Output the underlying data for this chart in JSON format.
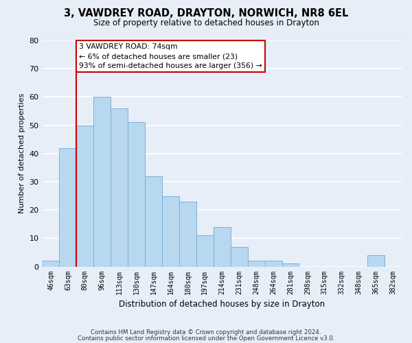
{
  "title": "3, VAWDREY ROAD, DRAYTON, NORWICH, NR8 6EL",
  "subtitle": "Size of property relative to detached houses in Drayton",
  "xlabel": "Distribution of detached houses by size in Drayton",
  "ylabel": "Number of detached properties",
  "bar_color": "#b8d8f0",
  "bar_edge_color": "#7ab0d8",
  "categories": [
    "46sqm",
    "63sqm",
    "80sqm",
    "96sqm",
    "113sqm",
    "130sqm",
    "147sqm",
    "164sqm",
    "180sqm",
    "197sqm",
    "214sqm",
    "231sqm",
    "248sqm",
    "264sqm",
    "281sqm",
    "298sqm",
    "315sqm",
    "332sqm",
    "348sqm",
    "365sqm",
    "382sqm"
  ],
  "values": [
    2,
    42,
    50,
    60,
    56,
    51,
    32,
    25,
    23,
    11,
    14,
    7,
    2,
    2,
    1,
    0,
    0,
    0,
    0,
    4,
    0
  ],
  "ylim": [
    0,
    80
  ],
  "yticks": [
    0,
    10,
    20,
    30,
    40,
    50,
    60,
    70,
    80
  ],
  "vline_color": "#cc0000",
  "vline_x_index": 1.5,
  "annotation_title": "3 VAWDREY ROAD: 74sqm",
  "annotation_line1": "← 6% of detached houses are smaller (23)",
  "annotation_line2": "93% of semi-detached houses are larger (356) →",
  "annotation_box_color": "#ffffff",
  "annotation_box_edge": "#cc0000",
  "footer1": "Contains HM Land Registry data © Crown copyright and database right 2024.",
  "footer2": "Contains public sector information licensed under the Open Government Licence v3.0.",
  "background_color": "#e8eef8",
  "grid_color": "#ffffff"
}
